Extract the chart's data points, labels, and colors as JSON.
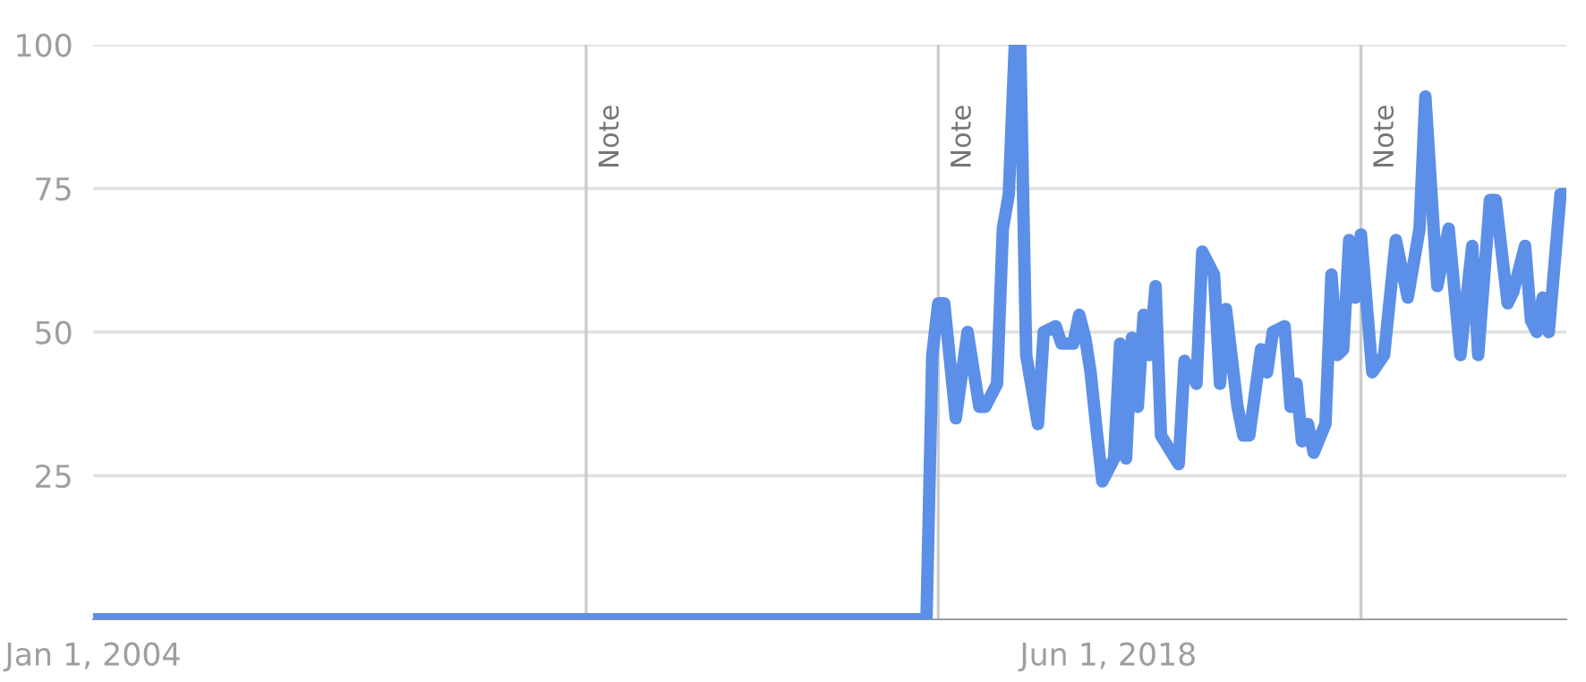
{
  "chart_data": {
    "type": "line",
    "x": [
      "2004-01",
      "2015-11",
      "2015-12",
      "2016-01",
      "2016-02",
      "2016-04",
      "2016-06",
      "2016-08",
      "2016-09",
      "2016-11",
      "2016-12",
      "2017-01",
      "2017-02",
      "2017-03",
      "2017-04",
      "2017-06",
      "2017-07",
      "2017-09",
      "2017-10",
      "2017-12",
      "2018-01",
      "2018-02",
      "2018-03",
      "2018-04",
      "2018-05",
      "2018-07",
      "2018-08",
      "2018-09",
      "2018-10",
      "2018-11",
      "2018-12",
      "2019-01",
      "2019-02",
      "2019-03",
      "2019-06",
      "2019-07",
      "2019-09",
      "2019-10",
      "2019-12",
      "2020-01",
      "2020-02",
      "2020-04",
      "2020-05",
      "2020-06",
      "2020-08",
      "2020-09",
      "2020-10",
      "2020-12",
      "2021-01",
      "2021-02",
      "2021-03",
      "2021-04",
      "2021-05",
      "2021-07",
      "2021-08",
      "2021-09",
      "2021-10",
      "2021-11",
      "2021-12",
      "2022-01",
      "2022-03",
      "2022-05",
      "2022-07",
      "2022-09",
      "2022-11",
      "2022-12",
      "2023-02",
      "2023-04",
      "2023-06",
      "2023-08",
      "2023-09",
      "2023-11",
      "2023-12",
      "2024-02",
      "2024-03",
      "2024-05",
      "2024-06",
      "2024-07",
      "2024-08",
      "2024-09",
      "2024-11",
      "2024-12"
    ],
    "series": [
      {
        "color": "#5b8fe8",
        "values": [
          0,
          0,
          46,
          55,
          55,
          35,
          50,
          37,
          37,
          41,
          68,
          74,
          100,
          100,
          46,
          34,
          50,
          51,
          48,
          48,
          53,
          49,
          43,
          33,
          24,
          28,
          48,
          28,
          49,
          37,
          53,
          46,
          58,
          32,
          27,
          45,
          41,
          64,
          60,
          41,
          54,
          37,
          32,
          32,
          47,
          43,
          50,
          51,
          37,
          41,
          31,
          34,
          29,
          34,
          60,
          46,
          47,
          66,
          56,
          67,
          43,
          46,
          66,
          56,
          68,
          91,
          58,
          68,
          46,
          65,
          46,
          73,
          73,
          55,
          57,
          65,
          52,
          50,
          56,
          50,
          74,
          74
        ]
      }
    ],
    "xlim": [
      "2004-01-01",
      "2024-12-01"
    ],
    "xticks": [
      {
        "value": "2004-01-01",
        "label": "Jan 1, 2004"
      },
      {
        "value": "2018-06-01",
        "label": "Jun 1, 2018"
      }
    ],
    "ylim": [
      0,
      100
    ],
    "yticks": [
      25,
      50,
      75,
      100
    ],
    "grid": "y",
    "marker": "none",
    "line_style": "solid",
    "ref_lines": [
      {
        "axis": "x",
        "value": "2011-01-01",
        "label": "Note",
        "color": "#cccccc"
      },
      {
        "axis": "x",
        "value": "2016-01-01",
        "label": "Note",
        "color": "#cccccc"
      },
      {
        "axis": "x",
        "value": "2022-01-01",
        "label": "Note",
        "color": "#cccccc"
      }
    ]
  }
}
